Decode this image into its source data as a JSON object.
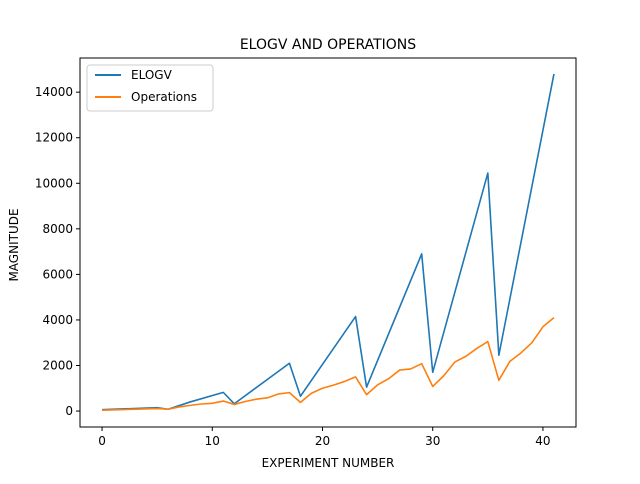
{
  "chart_data": {
    "type": "line",
    "title": "ELOGV AND OPERATIONS",
    "xlabel": "EXPERIMENT NUMBER",
    "ylabel": "MAGNITUDE",
    "xlim": [
      -2,
      43
    ],
    "ylim": [
      -700,
      15500
    ],
    "xticks": [
      0,
      10,
      20,
      30,
      40
    ],
    "yticks": [
      0,
      2000,
      4000,
      6000,
      8000,
      10000,
      12000,
      14000
    ],
    "grid": false,
    "legend_position": "top-left",
    "series": [
      {
        "name": "ELOGV",
        "color": "#1f77b4",
        "points": [
          [
            0,
            60
          ],
          [
            5,
            150
          ],
          [
            6,
            80
          ],
          [
            8,
            400
          ],
          [
            11,
            820
          ],
          [
            12,
            320
          ],
          [
            17,
            2100
          ],
          [
            18,
            650
          ],
          [
            23,
            4150
          ],
          [
            24,
            1050
          ],
          [
            29,
            6900
          ],
          [
            30,
            1700
          ],
          [
            35,
            10450
          ],
          [
            36,
            2450
          ],
          [
            41,
            14800
          ]
        ]
      },
      {
        "name": "Operations",
        "color": "#ff7f0e",
        "points": [
          [
            0,
            40
          ],
          [
            3,
            80
          ],
          [
            5,
            110
          ],
          [
            6,
            80
          ],
          [
            7,
            180
          ],
          [
            8,
            250
          ],
          [
            9,
            310
          ],
          [
            10,
            340
          ],
          [
            11,
            440
          ],
          [
            12,
            290
          ],
          [
            13,
            420
          ],
          [
            14,
            520
          ],
          [
            15,
            580
          ],
          [
            16,
            750
          ],
          [
            17,
            810
          ],
          [
            18,
            380
          ],
          [
            19,
            780
          ],
          [
            20,
            1000
          ],
          [
            21,
            1140
          ],
          [
            22,
            1300
          ],
          [
            23,
            1500
          ],
          [
            24,
            720
          ],
          [
            25,
            1150
          ],
          [
            26,
            1420
          ],
          [
            27,
            1800
          ],
          [
            28,
            1850
          ],
          [
            29,
            2080
          ],
          [
            30,
            1080
          ],
          [
            31,
            1550
          ],
          [
            32,
            2150
          ],
          [
            33,
            2400
          ],
          [
            34,
            2750
          ],
          [
            35,
            3050
          ],
          [
            36,
            1350
          ],
          [
            37,
            2180
          ],
          [
            38,
            2550
          ],
          [
            39,
            3000
          ],
          [
            40,
            3700
          ],
          [
            41,
            4100
          ]
        ]
      }
    ]
  }
}
